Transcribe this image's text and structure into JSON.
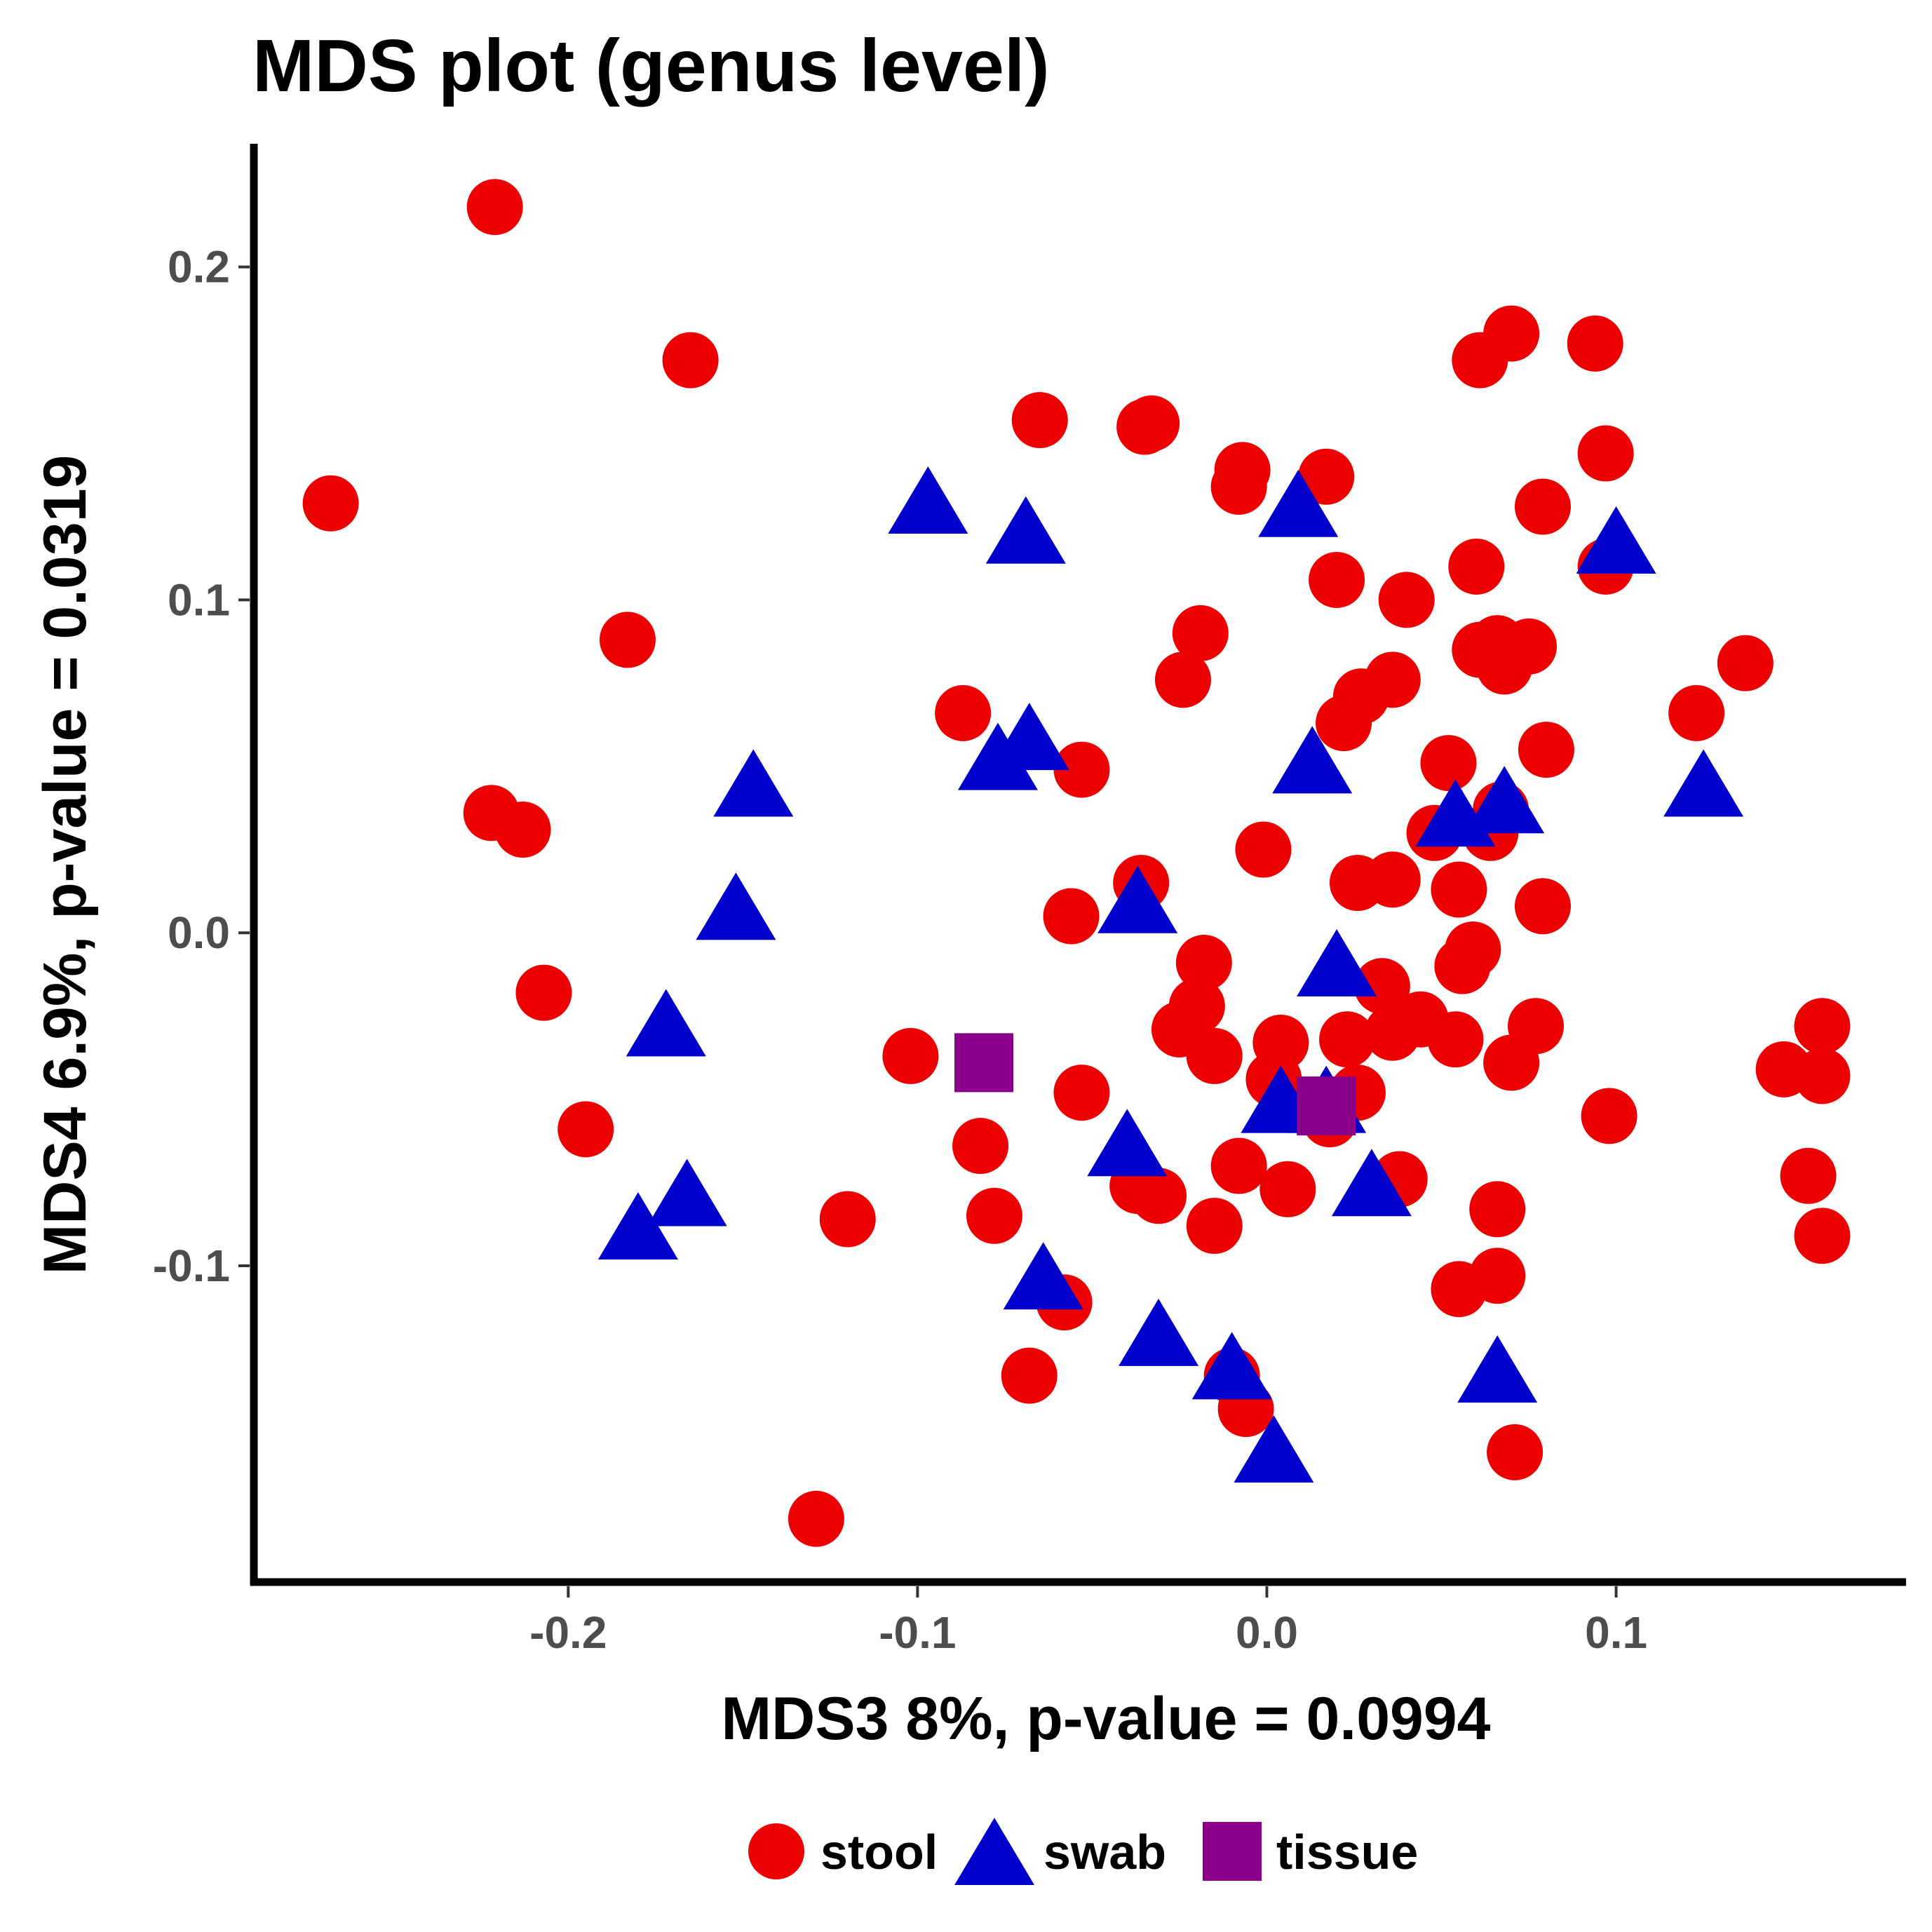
{
  "chart_data": {
    "type": "scatter",
    "title": "MDS plot (genus level)",
    "xlabel": "MDS3 8%, p-value = 0.0994",
    "ylabel": "MDS4 6.9%, p-value = 0.0319",
    "xlim": [
      -0.29,
      0.183
    ],
    "ylim": [
      -0.195,
      0.237
    ],
    "x_ticks": [
      {
        "value": -0.2,
        "label": "-0.2"
      },
      {
        "value": -0.1,
        "label": "-0.1"
      },
      {
        "value": 0.0,
        "label": "0.0"
      },
      {
        "value": 0.1,
        "label": "0.1"
      }
    ],
    "y_ticks": [
      {
        "value": 0.2,
        "label": "0.2"
      },
      {
        "value": 0.1,
        "label": "0.1"
      },
      {
        "value": 0.0,
        "label": "0.0"
      },
      {
        "value": -0.1,
        "label": "-0.1"
      }
    ],
    "grid": false,
    "legend_position": "bottom",
    "series": [
      {
        "name": "stool",
        "shape": "circle",
        "color": "#ee0000",
        "points": [
          [
            -0.268,
            0.129
          ],
          [
            -0.221,
            0.218
          ],
          [
            -0.165,
            0.172
          ],
          [
            -0.183,
            0.088
          ],
          [
            -0.222,
            0.036
          ],
          [
            -0.213,
            0.031
          ],
          [
            -0.207,
            -0.018
          ],
          [
            -0.195,
            -0.059
          ],
          [
            -0.129,
            -0.176
          ],
          [
            -0.12,
            -0.086
          ],
          [
            -0.102,
            -0.037
          ],
          [
            -0.087,
            0.066
          ],
          [
            -0.082,
            -0.064
          ],
          [
            -0.078,
            -0.085
          ],
          [
            -0.068,
            -0.133
          ],
          [
            -0.065,
            0.154
          ],
          [
            -0.058,
            -0.111
          ],
          [
            -0.056,
            0.005
          ],
          [
            -0.053,
            0.049
          ],
          [
            -0.053,
            -0.048
          ],
          [
            -0.035,
            0.152
          ],
          [
            -0.033,
            0.153
          ],
          [
            -0.036,
            0.015
          ],
          [
            -0.037,
            -0.076
          ],
          [
            -0.031,
            -0.079
          ],
          [
            -0.024,
            0.076
          ],
          [
            -0.019,
            0.09
          ],
          [
            -0.018,
            -0.009
          ],
          [
            -0.02,
            -0.022
          ],
          [
            -0.025,
            -0.029
          ],
          [
            -0.015,
            -0.037
          ],
          [
            -0.015,
            -0.088
          ],
          [
            -0.007,
            0.139
          ],
          [
            -0.008,
            0.134
          ],
          [
            -0.01,
            -0.133
          ],
          [
            -0.006,
            -0.143
          ],
          [
            -0.008,
            -0.07
          ],
          [
            -0.001,
            0.025
          ],
          [
            0.004,
            -0.033
          ],
          [
            0.002,
            -0.044
          ],
          [
            0.006,
            -0.077
          ],
          [
            0.017,
            0.137
          ],
          [
            0.018,
            -0.056
          ],
          [
            0.02,
            0.106
          ],
          [
            0.022,
            0.063
          ],
          [
            0.023,
            -0.032
          ],
          [
            0.026,
            0.015
          ],
          [
            0.027,
            0.071
          ],
          [
            0.026,
            -0.048
          ],
          [
            0.036,
            0.076
          ],
          [
            0.036,
            0.016
          ],
          [
            0.033,
            -0.016
          ],
          [
            0.036,
            -0.03
          ],
          [
            0.038,
            -0.074
          ],
          [
            0.04,
            0.1
          ],
          [
            0.044,
            -0.026
          ],
          [
            0.048,
            0.03
          ],
          [
            0.052,
            0.051
          ],
          [
            0.055,
            0.013
          ],
          [
            0.054,
            -0.032
          ],
          [
            0.056,
            -0.01
          ],
          [
            0.059,
            -0.005
          ],
          [
            0.055,
            -0.107
          ],
          [
            0.061,
            0.172
          ],
          [
            0.06,
            0.11
          ],
          [
            0.061,
            0.085
          ],
          [
            0.066,
            0.087
          ],
          [
            0.068,
            0.08
          ],
          [
            0.064,
            0.03
          ],
          [
            0.067,
            0.037
          ],
          [
            0.07,
            0.18
          ],
          [
            0.07,
            -0.039
          ],
          [
            0.066,
            -0.083
          ],
          [
            0.066,
            -0.103
          ],
          [
            0.071,
            -0.156
          ],
          [
            0.075,
            0.086
          ],
          [
            0.079,
            0.128
          ],
          [
            0.08,
            0.055
          ],
          [
            0.079,
            0.008
          ],
          [
            0.077,
            -0.028
          ],
          [
            0.094,
            0.177
          ],
          [
            0.097,
            0.144
          ],
          [
            0.097,
            0.11
          ],
          [
            0.098,
            -0.055
          ],
          [
            0.123,
            0.066
          ],
          [
            0.137,
            0.081
          ],
          [
            0.148,
            -0.041
          ],
          [
            0.155,
            -0.073
          ],
          [
            0.159,
            -0.091
          ],
          [
            0.159,
            -0.028
          ],
          [
            0.159,
            -0.043
          ]
        ]
      },
      {
        "name": "swab",
        "shape": "triangle",
        "color": "#0000cd",
        "points": [
          [
            -0.097,
            0.13
          ],
          [
            -0.069,
            0.121
          ],
          [
            -0.068,
            0.059
          ],
          [
            -0.077,
            0.053
          ],
          [
            -0.147,
            0.045
          ],
          [
            -0.152,
            0.008
          ],
          [
            -0.172,
            -0.027
          ],
          [
            -0.166,
            -0.078
          ],
          [
            -0.18,
            -0.088
          ],
          [
            -0.064,
            -0.103
          ],
          [
            -0.04,
            -0.063
          ],
          [
            -0.037,
            0.01
          ],
          [
            -0.031,
            -0.12
          ],
          [
            -0.01,
            -0.13
          ],
          [
            0.002,
            -0.155
          ],
          [
            0.009,
            0.129
          ],
          [
            0.013,
            0.052
          ],
          [
            0.02,
            -0.009
          ],
          [
            0.004,
            -0.05
          ],
          [
            0.017,
            -0.05
          ],
          [
            0.03,
            -0.075
          ],
          [
            0.054,
            0.036
          ],
          [
            0.068,
            0.04
          ],
          [
            0.066,
            -0.131
          ],
          [
            0.1,
            0.118
          ],
          [
            0.125,
            0.045
          ]
        ]
      },
      {
        "name": "tissue",
        "shape": "square",
        "color": "#8b008b",
        "points": [
          [
            -0.081,
            -0.039
          ],
          [
            0.017,
            -0.052
          ]
        ]
      }
    ]
  }
}
